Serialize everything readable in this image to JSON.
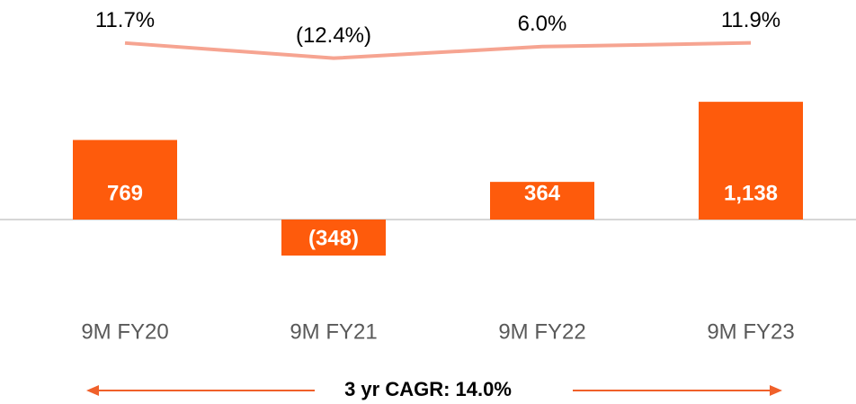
{
  "chart_data": {
    "type": "bar",
    "categories": [
      "9M FY20",
      "9M FY21",
      "9M FY22",
      "9M FY23"
    ],
    "series": [
      {
        "type": "bar",
        "color": "#fe5b0c",
        "values": [
          769,
          -348,
          364,
          1138
        ],
        "value_labels": [
          "769",
          "(348)",
          "364",
          "1,138"
        ]
      },
      {
        "type": "line",
        "axis": "y2",
        "color": "#f6a491",
        "values": [
          11.7,
          -12.4,
          6.0,
          11.9
        ],
        "value_labels": [
          "11.7%",
          "(12.4%)",
          "6.0%",
          "11.9%"
        ]
      }
    ],
    "ylim": [
      -800,
      2000
    ],
    "y2lim": [
      -400,
      60
    ],
    "annotation": "3 yr CAGR: 14.0%"
  }
}
